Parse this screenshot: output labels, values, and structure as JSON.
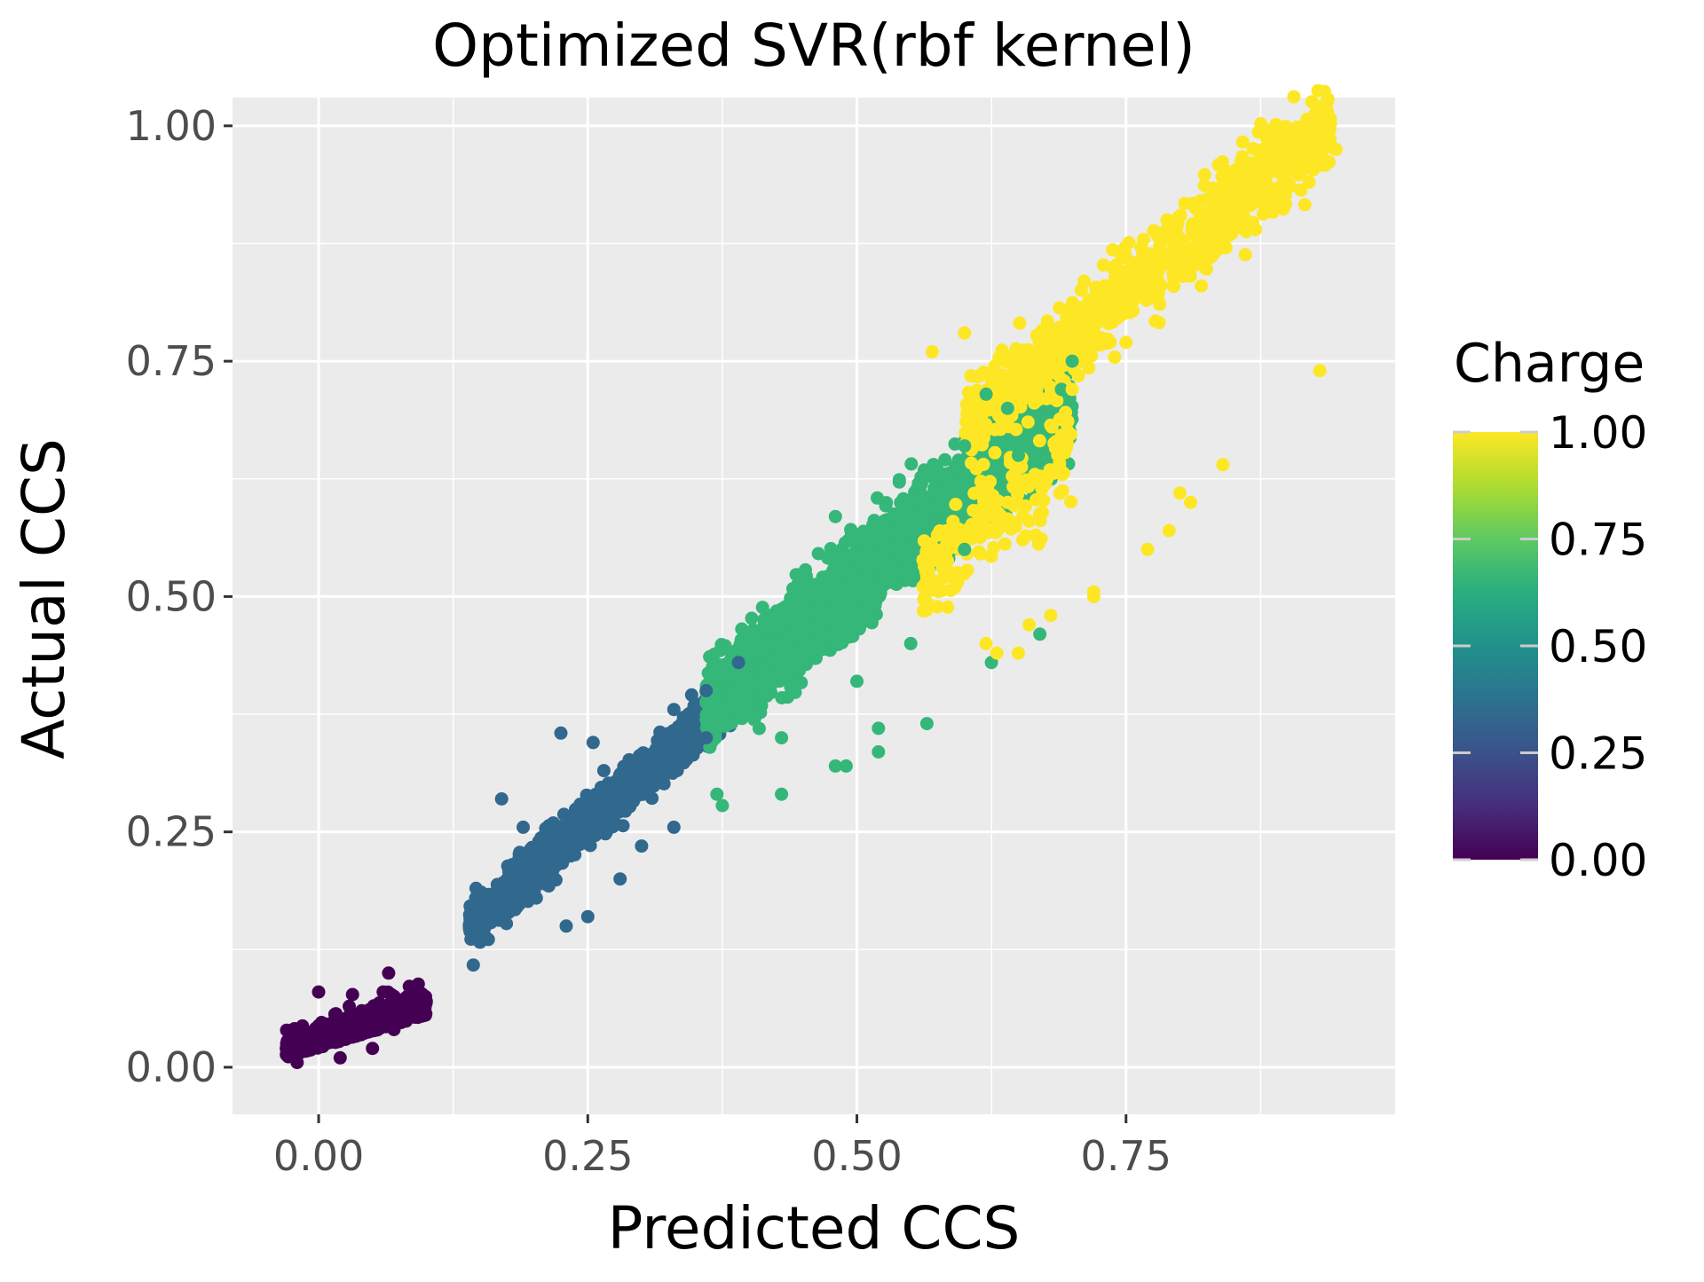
{
  "chart_data": {
    "type": "scatter",
    "title": "Optimized SVR(rbf kernel)",
    "xlabel": "Predicted CCS",
    "ylabel": "Actual CCS",
    "xlim": [
      -0.08,
      1.0
    ],
    "ylim": [
      -0.05,
      1.03
    ],
    "x_ticks": [
      "0.00",
      "0.25",
      "0.50",
      "0.75"
    ],
    "y_ticks": [
      "0.00",
      "0.25",
      "0.50",
      "0.75",
      "1.00"
    ],
    "x_tick_values": [
      0,
      0.25,
      0.5,
      0.75
    ],
    "y_tick_values": [
      0,
      0.25,
      0.5,
      0.75,
      1.0
    ],
    "grid": true,
    "legend": {
      "title": "Charge",
      "position": "right",
      "type": "continuous colorbar",
      "ticks": [
        "1.00",
        "0.75",
        "0.50",
        "0.25",
        "0.00"
      ],
      "tick_values": [
        1.0,
        0.75,
        0.5,
        0.25,
        0.0
      ],
      "colormap": "viridis"
    },
    "colors": {
      "panel_background": "#ebebeb",
      "grid": "#ffffff",
      "charge_0": "#440154",
      "charge_0.33": "#31688e",
      "charge_0.67": "#35b779",
      "charge_1": "#fde725"
    },
    "series": [
      {
        "charge": 0.0,
        "color": "#440154",
        "points": [
          [
            -0.03,
            0.02
          ],
          [
            0.0,
            0.08
          ],
          [
            0.02,
            0.04
          ],
          [
            0.04,
            0.06
          ],
          [
            0.06,
            0.08
          ],
          [
            0.065,
            0.1
          ],
          [
            0.08,
            0.07
          ],
          [
            0.1,
            0.07
          ],
          [
            0.02,
            0.01
          ],
          [
            0.05,
            0.02
          ],
          [
            -0.02,
            0.005
          ],
          [
            0.0,
            0.03
          ],
          [
            0.03,
            0.05
          ],
          [
            0.07,
            0.04
          ],
          [
            0.09,
            0.06
          ]
        ]
      },
      {
        "charge": 0.33,
        "color": "#31688e",
        "points": [
          [
            0.17,
            0.285
          ],
          [
            0.19,
            0.255
          ],
          [
            0.225,
            0.355
          ],
          [
            0.255,
            0.345
          ],
          [
            0.23,
            0.15
          ],
          [
            0.25,
            0.16
          ],
          [
            0.28,
            0.2
          ],
          [
            0.33,
            0.255
          ],
          [
            0.3,
            0.235
          ],
          [
            0.33,
            0.38
          ],
          [
            0.36,
            0.4
          ],
          [
            0.39,
            0.43
          ],
          [
            0.2,
            0.19
          ],
          [
            0.27,
            0.27
          ],
          [
            0.14,
            0.15
          ],
          [
            0.36,
            0.35
          ],
          [
            0.3,
            0.3
          ]
        ]
      },
      {
        "charge": 0.67,
        "color": "#35b779",
        "points": [
          [
            0.37,
            0.29
          ],
          [
            0.375,
            0.278
          ],
          [
            0.43,
            0.29
          ],
          [
            0.48,
            0.32
          ],
          [
            0.49,
            0.32
          ],
          [
            0.52,
            0.335
          ],
          [
            0.52,
            0.36
          ],
          [
            0.565,
            0.365
          ],
          [
            0.625,
            0.43
          ],
          [
            0.67,
            0.46
          ],
          [
            0.7,
            0.75
          ],
          [
            0.43,
            0.35
          ],
          [
            0.5,
            0.41
          ],
          [
            0.55,
            0.45
          ],
          [
            0.6,
            0.55
          ],
          [
            0.42,
            0.48
          ],
          [
            0.45,
            0.51
          ],
          [
            0.48,
            0.585
          ],
          [
            0.52,
            0.56
          ],
          [
            0.56,
            0.62
          ],
          [
            0.6,
            0.66
          ],
          [
            0.64,
            0.7
          ],
          [
            0.69,
            0.72
          ],
          [
            0.62,
            0.715
          ],
          [
            0.65,
            0.65
          ]
        ]
      },
      {
        "charge": 1.0,
        "color": "#fde725",
        "points": [
          [
            0.62,
            0.45
          ],
          [
            0.63,
            0.44
          ],
          [
            0.65,
            0.44
          ],
          [
            0.66,
            0.47
          ],
          [
            0.68,
            0.48
          ],
          [
            0.72,
            0.5
          ],
          [
            0.72,
            0.505
          ],
          [
            0.77,
            0.55
          ],
          [
            0.79,
            0.57
          ],
          [
            0.8,
            0.61
          ],
          [
            0.81,
            0.6
          ],
          [
            0.84,
            0.64
          ],
          [
            0.93,
            0.74
          ],
          [
            0.73,
            0.83
          ],
          [
            0.76,
            0.85
          ],
          [
            0.8,
            0.88
          ],
          [
            0.85,
            0.9
          ],
          [
            0.88,
            0.93
          ],
          [
            0.91,
            0.96
          ],
          [
            0.92,
            0.94
          ],
          [
            0.94,
            0.98
          ],
          [
            0.945,
            0.975
          ],
          [
            0.82,
            0.83
          ],
          [
            0.75,
            0.77
          ],
          [
            0.7,
            0.72
          ],
          [
            0.6,
            0.78
          ],
          [
            0.57,
            0.76
          ],
          [
            0.64,
            0.6
          ],
          [
            0.66,
            0.58
          ],
          [
            0.58,
            0.53
          ]
        ]
      }
    ]
  }
}
